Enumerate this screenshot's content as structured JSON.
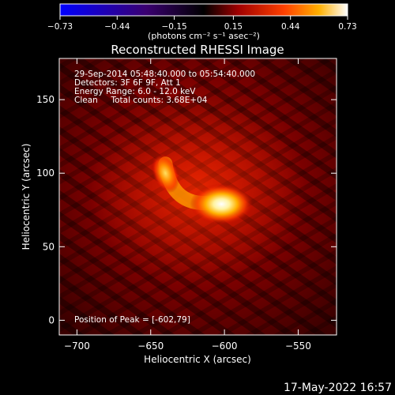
{
  "chart_data": {
    "type": "heatmap",
    "title": "Reconstructed RHESSI Image",
    "xlabel": "Heliocentric X (arcsec)",
    "ylabel": "Heliocentric Y (arcsec)",
    "xlim": [
      -712,
      -524
    ],
    "ylim": [
      -10,
      178
    ],
    "x_ticks": [
      -700,
      -650,
      -600,
      -550
    ],
    "y_ticks": [
      0,
      50,
      100,
      150
    ],
    "x_tick_labels": [
      "−700",
      "−650",
      "−600",
      "−550"
    ],
    "y_tick_labels": [
      "0",
      "50",
      "100",
      "150"
    ],
    "colorbar": {
      "ticks": [
        -0.73,
        -0.44,
        -0.15,
        0.15,
        0.44,
        0.73
      ],
      "tick_labels": [
        "−0.73",
        "−0.44",
        "−0.15",
        "0.15",
        "0.44",
        "0.73"
      ],
      "units_label": "(photons cm⁻² s⁻¹ asec⁻²)",
      "colormap": [
        "#0000ff",
        "#3a0070",
        "#000000",
        "#a00000",
        "#ff4000",
        "#ffb000",
        "#ffffff"
      ]
    },
    "info_lines": [
      "29-Sep-2014 05:48:40.000 to 05:54:40.000",
      "Detectors: 3F 6F 9F, Att 1",
      "Energy Range: 6.0 - 12.0 keV",
      "Clean     Total counts: 3.68E+04"
    ],
    "peak_text": "Position of Peak = [-602,79]",
    "peak": [
      -602,
      79
    ],
    "sources": [
      {
        "x": -602,
        "y": 79,
        "value": 0.73
      },
      {
        "x": -640,
        "y": 100,
        "value": 0.55
      }
    ]
  },
  "footer": {
    "date": "17-May-2022 16:57"
  }
}
